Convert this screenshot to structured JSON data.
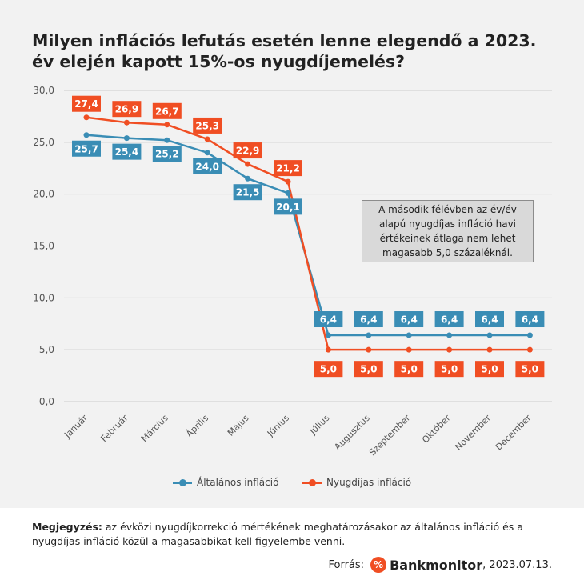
{
  "title": "Milyen inflációs lefutás esetén lenne elegendő a 2023. év elején kapott 15%-os nyugdíjemelés?",
  "callout": "A második félévben az év/év alapú nyugdíjas infláció havi értékeinek átlaga nem lehet magasabb 5,0 százaléknál.",
  "note_label": "Megjegyzés:",
  "note_text": " az évközi nyugdíjkorrekció mértékének meghatározásakor az általános infláció és a nyugdíjas infláció közül a magasabbikat kell figyelembe venni.",
  "source_label": "Forrás:",
  "source_logo_icon": "percent-icon",
  "source_logo_text": "Bankmonitor",
  "source_date": ", 2023.07.13.",
  "colors": {
    "general": "#3a8db5",
    "pension": "#f04e23"
  },
  "chart_data": {
    "type": "line",
    "categories": [
      "Január",
      "Február",
      "Március",
      "Április",
      "Május",
      "Június",
      "Július",
      "Augusztus",
      "Szeptember",
      "Október",
      "November",
      "December"
    ],
    "series": [
      {
        "name": "Általános infláció",
        "values": [
          25.7,
          25.4,
          25.2,
          24.0,
          21.5,
          20.1,
          6.4,
          6.4,
          6.4,
          6.4,
          6.4,
          6.4
        ],
        "labels": [
          "25,7",
          "25,4",
          "25,2",
          "24,0",
          "21,5",
          "20,1",
          "6,4",
          "6,4",
          "6,4",
          "6,4",
          "6,4",
          "6,4"
        ]
      },
      {
        "name": "Nyugdíjas infláció",
        "values": [
          27.4,
          26.9,
          26.7,
          25.3,
          22.9,
          21.2,
          5.0,
          5.0,
          5.0,
          5.0,
          5.0,
          5.0
        ],
        "labels": [
          "27,4",
          "26,9",
          "26,7",
          "25,3",
          "22,9",
          "21,2",
          "5,0",
          "5,0",
          "5,0",
          "5,0",
          "5,0",
          "5,0"
        ]
      }
    ],
    "ylim": [
      0,
      30
    ],
    "yticks": [
      "0,0",
      "5,0",
      "10,0",
      "15,0",
      "20,0",
      "25,0",
      "30,0"
    ],
    "grid": true,
    "legend": "bottom"
  }
}
